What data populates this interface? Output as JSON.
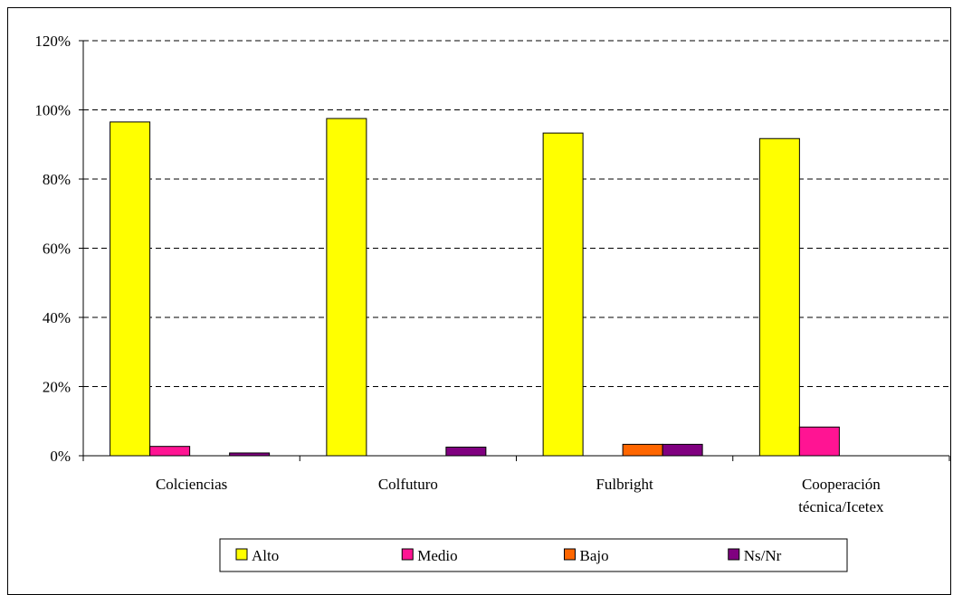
{
  "chart_data": {
    "type": "bar",
    "title": "",
    "xlabel": "",
    "ylabel": "",
    "categories": [
      "Colciencias",
      "Colfuturo",
      "Fulbright",
      "Cooperación técnica/Icetex"
    ],
    "category_lines": [
      [
        "Colciencias"
      ],
      [
        "Colfuturo"
      ],
      [
        "Fulbright"
      ],
      [
        "Cooperación",
        "técnica/Icetex"
      ]
    ],
    "series": [
      {
        "name": "Alto",
        "color": "#FFFF00",
        "values": [
          0.965,
          0.975,
          0.933,
          0.917
        ]
      },
      {
        "name": "Medio",
        "color": "#FF1493",
        "values": [
          0.027,
          0,
          0,
          0.083
        ]
      },
      {
        "name": "Bajo",
        "color": "#FF6600",
        "values": [
          0,
          0,
          0.033,
          0
        ]
      },
      {
        "name": "Ns/Nr",
        "color": "#800080",
        "values": [
          0.008,
          0.025,
          0.033,
          0
        ]
      }
    ],
    "ylim": [
      0,
      1.2
    ],
    "yticks": [
      0,
      0.2,
      0.4,
      0.6,
      0.8,
      1.0,
      1.2
    ],
    "ytick_labels": [
      "0%",
      "20%",
      "40%",
      "60%",
      "80%",
      "100%",
      "120%"
    ],
    "grid": true,
    "grid_style": "dashed",
    "legend_position": "bottom"
  }
}
